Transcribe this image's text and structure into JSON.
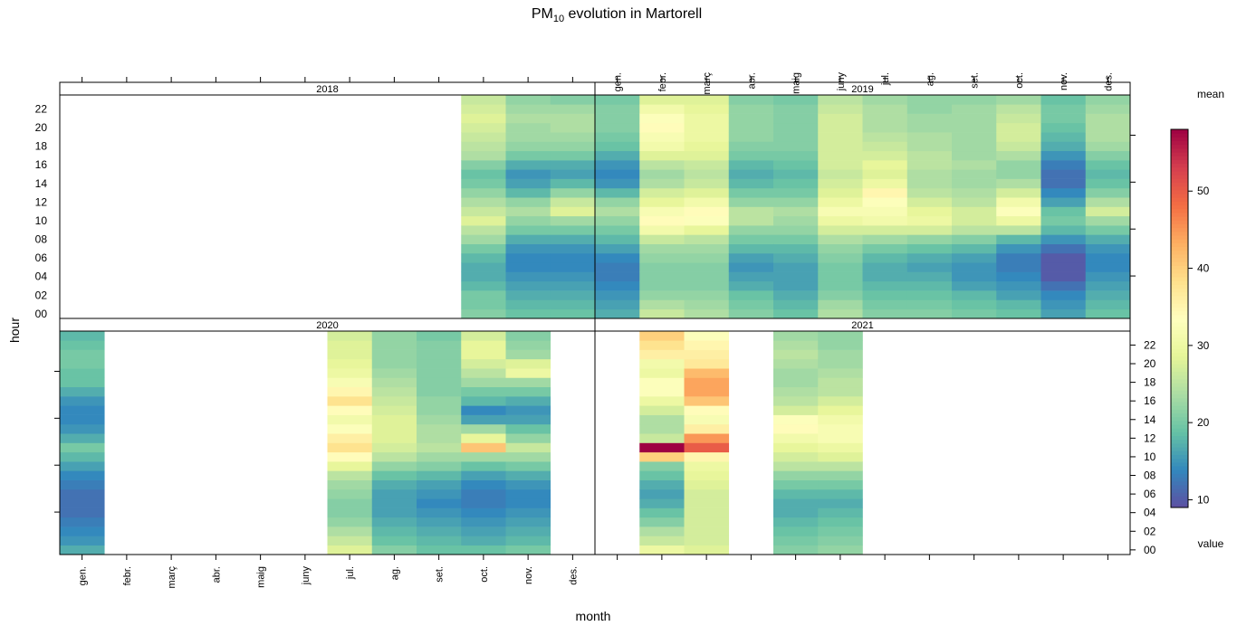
{
  "chart_data": {
    "type": "heatmap",
    "title": "PM10 evolution in Martorell",
    "title_main": "PM",
    "title_sub": "10",
    "title_rest": " evolution in Martorell",
    "xlabel": "month",
    "ylabel": "hour",
    "months": [
      "gen.",
      "febr.",
      "març",
      "abr.",
      "maig",
      "juny",
      "jul.",
      "ag.",
      "set.",
      "oct.",
      "nov.",
      "des."
    ],
    "hour_ticks": [
      "00",
      "02",
      "04",
      "06",
      "08",
      "10",
      "12",
      "14",
      "16",
      "18",
      "20",
      "22"
    ],
    "legend": {
      "title": "mean",
      "subtitle": "value",
      "ticks": [
        10,
        20,
        30,
        40,
        50
      ],
      "range": [
        9,
        58
      ],
      "colors": [
        "#5E4FA2",
        "#3288BD",
        "#66C2A5",
        "#ABDDA4",
        "#E6F598",
        "#FFFFBF",
        "#FEE08B",
        "#FDAE61",
        "#F46D43",
        "#D53E4F",
        "#9E0142"
      ]
    },
    "panels": [
      {
        "year": "2018",
        "values": {
          "oct.": [
            21,
            20,
            20,
            18,
            17,
            17,
            18,
            20,
            23,
            25,
            28,
            26,
            24,
            22,
            20,
            19,
            21,
            24,
            25,
            26,
            27,
            28,
            27,
            26
          ],
          "nov.": [
            19,
            18,
            17,
            16,
            15,
            14,
            14,
            15,
            17,
            20,
            22,
            24,
            22,
            18,
            16,
            15,
            17,
            20,
            22,
            23,
            23,
            24,
            23,
            22
          ],
          "des.": [
            19,
            18,
            17,
            16,
            15,
            14,
            14,
            15,
            17,
            20,
            23,
            28,
            26,
            22,
            18,
            16,
            17,
            20,
            22,
            23,
            24,
            24,
            23,
            21
          ]
        }
      },
      {
        "year": "2019",
        "values": {
          "gen.": [
            17,
            16,
            15,
            14,
            13,
            13,
            14,
            16,
            18,
            20,
            22,
            24,
            22,
            18,
            15,
            14,
            15,
            17,
            19,
            20,
            21,
            21,
            21,
            20
          ],
          "febr.": [
            26,
            24,
            22,
            21,
            21,
            21,
            22,
            23,
            26,
            31,
            34,
            32,
            29,
            27,
            24,
            23,
            25,
            28,
            31,
            32,
            34,
            33,
            31,
            28
          ],
          "març": [
            24,
            23,
            22,
            21,
            21,
            21,
            22,
            23,
            25,
            29,
            33,
            34,
            31,
            28,
            26,
            25,
            26,
            28,
            29,
            30,
            30,
            30,
            29,
            28
          ],
          "abr.": [
            21,
            20,
            19,
            17,
            16,
            15,
            16,
            18,
            20,
            22,
            25,
            25,
            22,
            20,
            18,
            17,
            18,
            20,
            21,
            22,
            22,
            22,
            22,
            21
          ],
          "maig": [
            19,
            18,
            17,
            16,
            16,
            16,
            17,
            18,
            20,
            22,
            23,
            24,
            22,
            20,
            19,
            18,
            19,
            20,
            21,
            21,
            21,
            21,
            21,
            20
          ],
          "juny": [
            24,
            23,
            21,
            20,
            20,
            20,
            21,
            22,
            24,
            27,
            30,
            32,
            30,
            28,
            27,
            26,
            27,
            27,
            27,
            27,
            27,
            27,
            26,
            25
          ],
          "jul.": [
            21,
            20,
            19,
            18,
            17,
            17,
            18,
            20,
            23,
            27,
            31,
            32,
            33,
            35,
            30,
            28,
            29,
            27,
            26,
            25,
            24,
            24,
            24,
            23
          ],
          "ag.": [
            21,
            20,
            19,
            18,
            17,
            16,
            17,
            19,
            22,
            27,
            30,
            29,
            27,
            25,
            24,
            24,
            25,
            25,
            24,
            24,
            23,
            23,
            22,
            22
          ],
          "set.": [
            20,
            19,
            18,
            16,
            15,
            15,
            16,
            18,
            21,
            25,
            27,
            27,
            25,
            24,
            23,
            23,
            24,
            23,
            23,
            23,
            23,
            23,
            23,
            22
          ],
          "oct.": [
            19,
            18,
            16,
            15,
            14,
            13,
            13,
            15,
            18,
            25,
            30,
            33,
            31,
            27,
            24,
            22,
            22,
            24,
            26,
            27,
            27,
            26,
            25,
            23
          ],
          "nov.": [
            16,
            15,
            14,
            12,
            10,
            10,
            10,
            12,
            15,
            18,
            20,
            19,
            16,
            14,
            12,
            12,
            13,
            15,
            17,
            18,
            19,
            20,
            20,
            19
          ],
          "des.": [
            19,
            18,
            17,
            16,
            15,
            14,
            14,
            15,
            17,
            20,
            23,
            27,
            24,
            21,
            19,
            18,
            19,
            21,
            23,
            24,
            24,
            24,
            23,
            22
          ]
        }
      },
      {
        "year": "2020",
        "values": {
          "gen.": [
            17,
            15,
            14,
            13,
            12,
            12,
            12,
            13,
            14,
            16,
            18,
            20,
            17,
            15,
            14,
            14,
            15,
            17,
            19,
            19,
            20,
            20,
            19,
            18
          ],
          "jul.": [
            28,
            26,
            24,
            22,
            21,
            21,
            22,
            23,
            25,
            29,
            34,
            38,
            36,
            33,
            31,
            34,
            38,
            35,
            32,
            30,
            29,
            28,
            28,
            27
          ],
          "ag.": [
            21,
            19,
            18,
            17,
            16,
            16,
            16,
            17,
            19,
            22,
            25,
            27,
            28,
            28,
            28,
            27,
            26,
            25,
            24,
            23,
            22,
            22,
            22,
            22
          ],
          "set.": [
            19,
            18,
            17,
            16,
            15,
            14,
            15,
            16,
            18,
            21,
            23,
            25,
            24,
            24,
            23,
            22,
            22,
            21,
            21,
            21,
            21,
            21,
            21,
            20
          ],
          "oct.": [
            19,
            17,
            16,
            15,
            14,
            13,
            13,
            14,
            16,
            19,
            23,
            41,
            29,
            23,
            16,
            14,
            18,
            20,
            23,
            25,
            27,
            29,
            29,
            27
          ],
          "nov.": [
            20,
            18,
            17,
            16,
            15,
            14,
            14,
            15,
            17,
            20,
            23,
            26,
            22,
            19,
            16,
            15,
            17,
            20,
            23,
            30,
            28,
            23,
            22,
            21
          ]
        }
      },
      {
        "year": "2021",
        "values": {
          "febr.": [
            30,
            26,
            24,
            21,
            19,
            17,
            16,
            17,
            19,
            21,
            40,
            58,
            26,
            24,
            24,
            27,
            30,
            33,
            33,
            30,
            31,
            36,
            38,
            40
          ],
          "març": [
            28,
            27,
            27,
            27,
            27,
            27,
            27,
            28,
            29,
            30,
            35,
            50,
            45,
            36,
            32,
            34,
            41,
            44,
            44,
            42,
            37,
            36,
            35,
            33
          ],
          "maig": [
            21,
            20,
            19,
            18,
            17,
            17,
            18,
            20,
            22,
            25,
            27,
            29,
            31,
            34,
            33,
            27,
            25,
            24,
            23,
            23,
            24,
            25,
            24,
            23
          ],
          "juny": [
            22,
            21,
            20,
            19,
            18,
            17,
            18,
            20,
            22,
            25,
            28,
            30,
            32,
            32,
            31,
            29,
            27,
            25,
            25,
            24,
            23,
            23,
            22,
            22
          ]
        }
      }
    ]
  }
}
